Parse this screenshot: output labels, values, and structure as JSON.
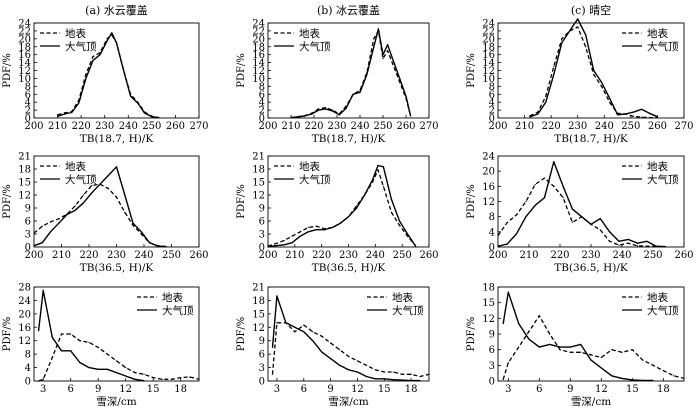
{
  "chart_data": [
    {
      "type": "line",
      "title": "(a) 水云覆盖",
      "xlabel": "TB(18.7, H)/K",
      "ylabel": "PDF/%",
      "xlim": [
        200,
        270
      ],
      "ylim": [
        0,
        24
      ],
      "xticks": [
        200,
        210,
        220,
        230,
        240,
        250,
        260,
        270
      ],
      "yticks": [
        0,
        2,
        4,
        6,
        8,
        10,
        12,
        14,
        16,
        18,
        20,
        22,
        24
      ],
      "legend": "top-left",
      "series": [
        {
          "name": "地表",
          "style": "dashed",
          "x": [
            210,
            213,
            216,
            219,
            222,
            225,
            228,
            231,
            233,
            235,
            238,
            241,
            244,
            247,
            250,
            253
          ],
          "y": [
            0.8,
            1.3,
            1.6,
            4.5,
            11,
            15.5,
            16.5,
            20,
            21,
            19,
            12,
            6,
            4,
            1.5,
            0.4,
            0.1
          ]
        },
        {
          "name": "大气顶",
          "style": "solid",
          "x": [
            210,
            213,
            216,
            219,
            222,
            225,
            228,
            231,
            233,
            235,
            238,
            241,
            244,
            247,
            250,
            253
          ],
          "y": [
            0.4,
            1.0,
            1.4,
            3.8,
            10,
            14.5,
            16,
            19.5,
            21.5,
            19,
            12,
            5.5,
            3.8,
            1.2,
            0.3,
            0.1
          ]
        }
      ]
    },
    {
      "type": "line",
      "title": "(b) 冰云覆盖",
      "xlabel": "TB(18.7, H)/K",
      "ylabel": "PDF/%",
      "xlim": [
        200,
        270
      ],
      "ylim": [
        0,
        24
      ],
      "xticks": [
        200,
        210,
        220,
        230,
        240,
        250,
        260,
        270
      ],
      "yticks": [
        0,
        2,
        4,
        6,
        8,
        10,
        12,
        14,
        16,
        18,
        20,
        22,
        24
      ],
      "legend": "top-left",
      "series": [
        {
          "name": "地表",
          "style": "dashed",
          "x": [
            210,
            213,
            216,
            219,
            222,
            225,
            228,
            231,
            234,
            237,
            240,
            243,
            246,
            248,
            250,
            252,
            256,
            260,
            262
          ],
          "y": [
            0.1,
            0.3,
            0.6,
            1.2,
            2.3,
            2.6,
            2.0,
            1.0,
            3.0,
            6.0,
            7.0,
            11.5,
            20,
            22,
            15,
            17,
            11,
            5,
            0.5
          ]
        },
        {
          "name": "大气顶",
          "style": "solid",
          "x": [
            210,
            213,
            216,
            219,
            222,
            225,
            228,
            231,
            234,
            237,
            240,
            243,
            246,
            248,
            250,
            252,
            256,
            260,
            262
          ],
          "y": [
            0.1,
            0.3,
            0.5,
            1.0,
            2.0,
            2.3,
            1.8,
            0.8,
            2.5,
            6.0,
            6.5,
            11,
            18,
            22.5,
            16,
            18.5,
            12,
            5.5,
            0.5
          ]
        }
      ]
    },
    {
      "type": "line",
      "title": "(c) 晴空",
      "xlabel": "TB(18.7, H)/K",
      "ylabel": "PDF/%",
      "xlim": [
        200,
        270
      ],
      "ylim": [
        0,
        24
      ],
      "xticks": [
        200,
        210,
        220,
        230,
        240,
        250,
        260,
        270
      ],
      "yticks": [
        0,
        2,
        4,
        6,
        8,
        10,
        12,
        14,
        16,
        18,
        20,
        22,
        24
      ],
      "legend": "top-right",
      "series": [
        {
          "name": "地表",
          "style": "dashed",
          "x": [
            212,
            215,
            218,
            221,
            224,
            227,
            230,
            233,
            236,
            239,
            242,
            245,
            248,
            251,
            254,
            257,
            260
          ],
          "y": [
            0.5,
            1.5,
            5.5,
            13,
            20,
            22,
            23,
            18,
            11,
            8,
            4,
            1.2,
            1.0,
            0.4,
            0.2,
            0.1,
            0.1
          ]
        },
        {
          "name": "大气顶",
          "style": "solid",
          "x": [
            212,
            215,
            218,
            221,
            224,
            227,
            230,
            233,
            236,
            239,
            242,
            245,
            248,
            251,
            254,
            257,
            260
          ],
          "y": [
            0.3,
            1.0,
            4.0,
            11,
            19,
            22,
            25,
            21,
            12,
            9,
            5,
            0.8,
            1.0,
            1.5,
            2.2,
            1.2,
            0.3
          ]
        }
      ]
    },
    {
      "type": "line",
      "title": "",
      "xlabel": "TB(36.5, H)/K",
      "ylabel": "PDF/%",
      "xlim": [
        200,
        260
      ],
      "ylim": [
        0,
        21
      ],
      "xticks": [
        200,
        210,
        220,
        230,
        240,
        250,
        260
      ],
      "yticks": [
        0,
        3,
        6,
        9,
        12,
        15,
        18,
        21
      ],
      "legend": "top-left",
      "series": [
        {
          "name": "地表",
          "style": "dashed",
          "x": [
            200,
            203,
            206,
            209,
            212,
            215,
            218,
            221,
            224,
            227,
            230,
            233,
            236,
            239,
            242,
            245,
            248
          ],
          "y": [
            3.2,
            4.8,
            5.8,
            6.5,
            7.6,
            9.5,
            12,
            14.2,
            14.5,
            13.5,
            11.5,
            8,
            5,
            3,
            1,
            0.3,
            0.1
          ]
        },
        {
          "name": "大气顶",
          "style": "solid",
          "x": [
            200,
            203,
            206,
            209,
            212,
            215,
            218,
            221,
            224,
            227,
            230,
            233,
            236,
            239,
            242,
            245,
            248
          ],
          "y": [
            0.3,
            1.0,
            3.5,
            5.5,
            7.5,
            8.5,
            10.2,
            12.5,
            14.5,
            16.5,
            18.5,
            12,
            5.5,
            3.5,
            1.0,
            0.2,
            0.1
          ]
        }
      ]
    },
    {
      "type": "line",
      "title": "",
      "xlabel": "TB(36.5, H)/K",
      "ylabel": "PDF/%",
      "xlim": [
        200,
        260
      ],
      "ylim": [
        0,
        21
      ],
      "xticks": [
        200,
        210,
        220,
        230,
        240,
        250,
        260
      ],
      "yticks": [
        0,
        3,
        6,
        9,
        12,
        15,
        18,
        21
      ],
      "legend": "top-left",
      "series": [
        {
          "name": "地表",
          "style": "dashed",
          "x": [
            200,
            203,
            206,
            209,
            212,
            215,
            218,
            221,
            224,
            227,
            230,
            233,
            236,
            239,
            241,
            243,
            246,
            249,
            252,
            255
          ],
          "y": [
            0.2,
            0.8,
            1.5,
            2.5,
            3.5,
            4.5,
            4.8,
            4.2,
            4.5,
            5.5,
            7,
            9.5,
            12,
            15,
            17.8,
            14,
            8,
            5,
            2.5,
            0.3
          ]
        },
        {
          "name": "大气顶",
          "style": "solid",
          "x": [
            200,
            203,
            206,
            209,
            212,
            215,
            218,
            221,
            224,
            227,
            230,
            233,
            236,
            239,
            241,
            243,
            246,
            249,
            252,
            255
          ],
          "y": [
            0.1,
            0.3,
            0.5,
            1.0,
            2.5,
            3.5,
            4.0,
            4.0,
            4.5,
            5.5,
            7,
            9,
            12,
            15.5,
            18.8,
            18.5,
            11,
            6,
            3,
            0.2
          ]
        }
      ]
    },
    {
      "type": "line",
      "title": "",
      "xlabel": "TB(36.5, H)/K",
      "ylabel": "PDF/%",
      "xlim": [
        200,
        260
      ],
      "ylim": [
        0,
        24
      ],
      "xticks": [
        200,
        210,
        220,
        230,
        240,
        250,
        260
      ],
      "yticks": [
        0,
        4,
        8,
        12,
        16,
        20,
        24
      ],
      "legend": "top-right",
      "series": [
        {
          "name": "地表",
          "style": "dashed",
          "x": [
            200,
            203,
            206,
            209,
            212,
            215,
            218,
            221,
            224,
            227,
            230,
            233,
            236,
            239,
            242,
            245,
            248,
            251,
            254
          ],
          "y": [
            3,
            6.5,
            8.5,
            12,
            16.5,
            18.2,
            16,
            13,
            6.5,
            8,
            6,
            4.5,
            1.5,
            0.5,
            1,
            0.3,
            0.2,
            0.1,
            0.1
          ]
        },
        {
          "name": "大气顶",
          "style": "solid",
          "x": [
            200,
            203,
            206,
            209,
            212,
            215,
            218,
            221,
            224,
            227,
            230,
            233,
            236,
            239,
            242,
            245,
            248,
            251,
            254
          ],
          "y": [
            0.2,
            0.8,
            3.5,
            8,
            11,
            13,
            22.5,
            16,
            10,
            8,
            6,
            7.5,
            4,
            1.5,
            2,
            1,
            1.5,
            0.2,
            0.1
          ]
        }
      ]
    },
    {
      "type": "line",
      "title": "",
      "xlabel": "雪深/cm",
      "ylabel": "PDF/%",
      "xlim": [
        2,
        20
      ],
      "ylim": [
        0,
        28
      ],
      "xticks": [
        3,
        6,
        9,
        12,
        15,
        18
      ],
      "yticks": [
        0,
        4,
        8,
        12,
        16,
        20,
        24,
        28
      ],
      "legend": "top-right",
      "series": [
        {
          "name": "地表",
          "style": "dashed",
          "x": [
            2.5,
            3,
            4,
            5,
            6,
            7,
            8,
            9,
            10,
            11,
            12,
            13,
            14,
            15,
            16,
            17,
            18,
            19,
            20
          ],
          "y": [
            0,
            0.5,
            7,
            14,
            14,
            12,
            11.5,
            10,
            8,
            6,
            4,
            2.5,
            2,
            1,
            0.5,
            0.5,
            1,
            1.2,
            0.5
          ]
        },
        {
          "name": "大气顶",
          "style": "solid",
          "x": [
            2.5,
            3,
            4,
            5,
            6,
            7,
            8,
            9,
            10,
            11,
            12,
            13,
            14
          ],
          "y": [
            15,
            27,
            13,
            9,
            9,
            5.5,
            4,
            3.5,
            3.5,
            2.5,
            1.5,
            0.5,
            0.1
          ]
        }
      ]
    },
    {
      "type": "line",
      "title": "",
      "xlabel": "雪深/cm",
      "ylabel": "PDF/%",
      "xlim": [
        2,
        20
      ],
      "ylim": [
        0,
        21
      ],
      "xticks": [
        3,
        6,
        9,
        12,
        15,
        18
      ],
      "yticks": [
        0,
        3,
        6,
        9,
        12,
        15,
        18,
        21
      ],
      "legend": "top-right",
      "series": [
        {
          "name": "地表",
          "style": "dashed",
          "x": [
            2.5,
            3,
            4,
            5,
            6,
            7,
            8,
            9,
            10,
            11,
            12,
            13,
            14,
            15,
            16,
            17,
            18,
            19,
            20
          ],
          "y": [
            1.5,
            13,
            13,
            11,
            12.5,
            11,
            10,
            8.5,
            7,
            5.5,
            4.5,
            3.5,
            2.5,
            2,
            2,
            1.5,
            1.5,
            1,
            1.5
          ]
        },
        {
          "name": "大气顶",
          "style": "solid",
          "x": [
            2.5,
            3,
            4,
            5,
            6,
            7,
            8,
            9,
            10,
            11,
            12,
            13,
            14,
            15,
            16,
            17,
            18,
            19
          ],
          "y": [
            7.5,
            19,
            13,
            12,
            11,
            9,
            6.5,
            5,
            3.5,
            2.5,
            2,
            1,
            0.5,
            0.5,
            0.3,
            0.2,
            0.1,
            0.1
          ]
        }
      ]
    },
    {
      "type": "line",
      "title": "",
      "xlabel": "雪深/cm",
      "ylabel": "PDF/%",
      "xlim": [
        2,
        20
      ],
      "ylim": [
        0,
        18
      ],
      "xticks": [
        3,
        6,
        9,
        12,
        15,
        18
      ],
      "yticks": [
        0,
        3,
        6,
        9,
        12,
        15,
        18
      ],
      "legend": "top-right",
      "series": [
        {
          "name": "地表",
          "style": "dashed",
          "x": [
            2.5,
            3,
            4,
            5,
            6,
            7,
            8,
            9,
            10,
            11,
            12,
            13,
            14,
            15,
            16,
            17,
            18,
            19,
            20
          ],
          "y": [
            0.3,
            3.5,
            6.5,
            9.5,
            12.5,
            9,
            6,
            5.5,
            5.5,
            5,
            4.5,
            6,
            5.5,
            6,
            4,
            3,
            2,
            1,
            0.5
          ]
        },
        {
          "name": "大气顶",
          "style": "solid",
          "x": [
            2.5,
            3,
            4,
            5,
            6,
            7,
            8,
            9,
            10,
            11,
            12,
            13,
            14,
            15,
            16,
            17
          ],
          "y": [
            11,
            17,
            11,
            8,
            6.5,
            7,
            6.5,
            6.5,
            7,
            4,
            2.5,
            1,
            0.5,
            0.2,
            0.1,
            0.1
          ]
        }
      ]
    }
  ]
}
